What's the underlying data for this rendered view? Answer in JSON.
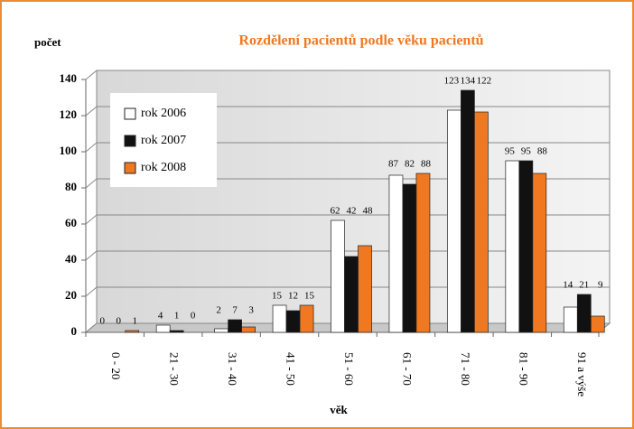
{
  "chart_data": {
    "type": "bar",
    "title": "Rozdělení pacientů podle věku pacientů",
    "y_label": "počet",
    "x_label": "věk",
    "categories": [
      "0 - 20",
      "21 - 30",
      "31 - 40",
      "41 - 50",
      "51 - 60",
      "61 - 70",
      "71 - 80",
      "81 - 90",
      "91 a výše"
    ],
    "series": [
      {
        "name": "rok 2006",
        "color": "#ffffff",
        "values": [
          0,
          4,
          2,
          15,
          62,
          87,
          123,
          95,
          14
        ]
      },
      {
        "name": "rok 2007",
        "color": "#111111",
        "values": [
          0,
          1,
          7,
          12,
          42,
          82,
          134,
          95,
          21
        ]
      },
      {
        "name": "rok 2008",
        "color": "#f07820",
        "values": [
          1,
          0,
          3,
          15,
          48,
          88,
          122,
          88,
          9
        ]
      }
    ],
    "ylim": [
      0,
      140
    ],
    "yticks": [
      0,
      20,
      40,
      60,
      80,
      100,
      120,
      140
    ],
    "grid": true,
    "legend": "upper left"
  }
}
